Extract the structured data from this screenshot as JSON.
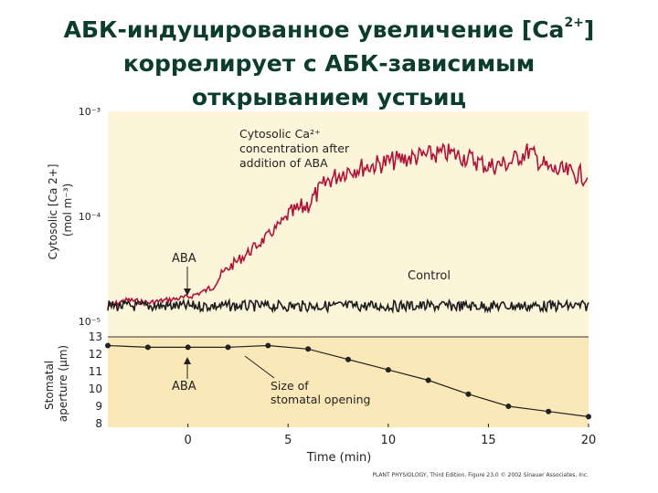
{
  "slide": {
    "title_line1": "АБК-индуцированное увеличение [Ca",
    "title_line1_sup": "2+",
    "title_line1_end": "]",
    "title_line2": "коррелирует с АБК-зависимым",
    "title_line3": "открыванием устьиц"
  },
  "colors": {
    "top_panel_bg": "#fdf5da",
    "bottom_panel_bg": "#fbe8b8",
    "aba_trace": "#b0123a",
    "control_trace": "#1e1e1e",
    "aperture_line": "#222222",
    "title": "#0b3d2a"
  },
  "chart_data": [
    {
      "type": "line",
      "ylabel": "Cytosolic [Ca 2+] (mol m⁻³)",
      "yscale": "log",
      "ylim": [
        1e-05,
        0.001
      ],
      "y_tick_labels": [
        {
          "value": 0.001,
          "label": "10⁻³"
        },
        {
          "value": 0.0001,
          "label": "10⁻⁴"
        },
        {
          "value": 1e-05,
          "label": "10⁻⁵"
        }
      ],
      "xlim": [
        -4,
        20
      ],
      "annotations": {
        "aba_label": "ABA",
        "aba_time": 0,
        "aba_trace_label": "Cytosolic Ca²⁺ concentration after addition of ABA",
        "control_label": "Control"
      },
      "series": [
        {
          "name": "Cytosolic Ca²⁺ concentration after addition of ABA",
          "x": [
            -4,
            -3,
            -2,
            -1,
            0,
            1,
            2,
            3,
            4,
            5,
            6,
            7,
            8,
            9,
            10,
            11,
            12,
            13,
            14,
            15,
            16,
            17,
            18,
            19,
            20
          ],
          "y": [
            1.4e-05,
            1.6e-05,
            1.5e-05,
            1.6e-05,
            1.7e-05,
            2e-05,
            3.2e-05,
            4.5e-05,
            6.5e-05,
            0.0001,
            0.00013,
            0.00022,
            0.00028,
            0.0003,
            0.00033,
            0.00036,
            0.00038,
            0.0004,
            0.00036,
            0.0003,
            0.00032,
            0.00042,
            0.00028,
            0.00026,
            0.00024
          ]
        },
        {
          "name": "Control",
          "x": [
            -4,
            20
          ],
          "y": [
            1.4e-05,
            1.4e-05
          ]
        }
      ]
    },
    {
      "type": "line",
      "xlabel": "Time (min)",
      "ylabel": "Stomatal aperture (μm)",
      "xlim": [
        -4,
        20
      ],
      "ylim": [
        8,
        13
      ],
      "x_ticks": [
        0,
        5,
        10,
        15,
        20
      ],
      "y_ticks": [
        8,
        9,
        10,
        11,
        12,
        13
      ],
      "annotations": {
        "aba_label": "ABA",
        "aba_time": 0,
        "opening_label": "Size of stomatal opening"
      },
      "series": [
        {
          "name": "Size of stomatal opening",
          "x": [
            -4,
            -2,
            0,
            2,
            4,
            6,
            8,
            10,
            12,
            14,
            16,
            18,
            20
          ],
          "y": [
            12.5,
            12.4,
            12.4,
            12.4,
            12.5,
            12.3,
            11.7,
            11.1,
            10.5,
            9.7,
            9.0,
            8.7,
            8.4
          ]
        }
      ]
    }
  ],
  "credit": "PLANT PHYSIOLOGY, Third Edition, Figure 23.0 © 2002 Sinauer Associates, Inc."
}
